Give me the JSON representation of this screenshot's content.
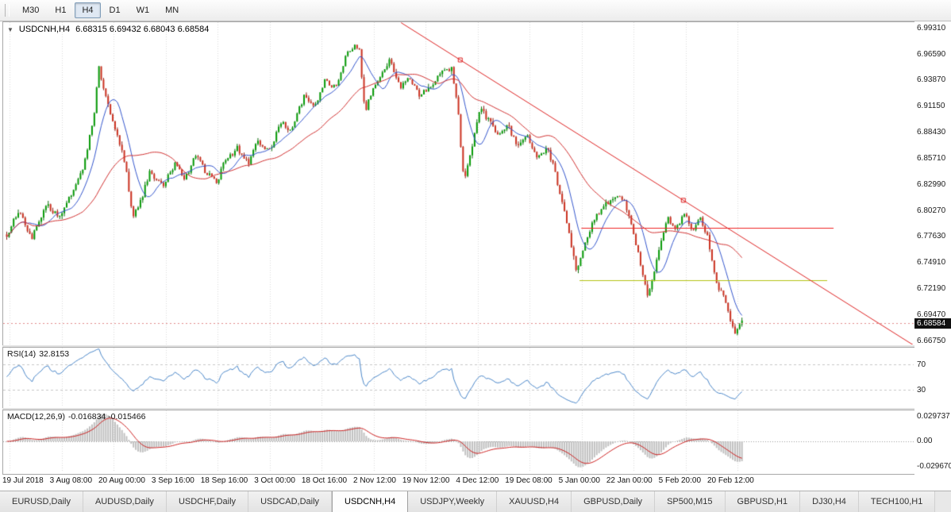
{
  "toolbar": {
    "timeframes": [
      {
        "label": "M30",
        "active": false
      },
      {
        "label": "H1",
        "active": false
      },
      {
        "label": "H4",
        "active": true
      },
      {
        "label": "D1",
        "active": false
      },
      {
        "label": "W1",
        "active": false
      },
      {
        "label": "MN",
        "active": false
      }
    ]
  },
  "chart": {
    "symbol_title": "USDCNH,H4",
    "ohlc": "6.68315 6.69432 6.68043 6.68584",
    "current_price": "6.68584",
    "dropdown_icon": "▼",
    "price_axis": [
      "6.99310",
      "6.96590",
      "6.93870",
      "6.91150",
      "6.88430",
      "6.85710",
      "6.82990",
      "6.80270",
      "6.77630",
      "6.74910",
      "6.72190",
      "6.69470",
      "6.66750"
    ],
    "time_axis": [
      "19 Jul 2018",
      "3 Aug 08:00",
      "20 Aug 00:00",
      "3 Sep 16:00",
      "18 Sep 16:00",
      "3 Oct 00:00",
      "18 Oct 16:00",
      "2 Nov 12:00",
      "19 Nov 12:00",
      "4 Dec 12:00",
      "19 Dec 08:00",
      "5 Jan 00:00",
      "22 Jan 00:00",
      "5 Feb 20:00",
      "20 Feb 12:00"
    ]
  },
  "rsi": {
    "name": "RSI(14)",
    "value": "32.8153",
    "levels": [
      "70",
      "30"
    ]
  },
  "macd": {
    "name": "MACD(12,26,9)",
    "values": "-0.016834 -0.015466",
    "axis": [
      "0.029737",
      "0.00",
      "-0.029670"
    ]
  },
  "tabs": [
    {
      "label": "EURUSD,Daily",
      "active": false
    },
    {
      "label": "AUDUSD,Daily",
      "active": false
    },
    {
      "label": "USDCHF,Daily",
      "active": false
    },
    {
      "label": "USDCAD,Daily",
      "active": false
    },
    {
      "label": "USDCNH,H4",
      "active": true
    },
    {
      "label": "USDJPY,Weekly",
      "active": false
    },
    {
      "label": "XAUUSD,H4",
      "active": false
    },
    {
      "label": "GBPUSD,Daily",
      "active": false
    },
    {
      "label": "SP500,M15",
      "active": false
    },
    {
      "label": "GBPUSD,H1",
      "active": false
    },
    {
      "label": "DJ30,H4",
      "active": false
    },
    {
      "label": "TECH100,H1",
      "active": false
    }
  ],
  "chart_data": {
    "type": "candlestick",
    "symbol": "USDCNH",
    "timeframe": "H4",
    "title": "USDCNH,H4",
    "price_min": 6.6635,
    "price_max": 6.9985,
    "data_width_frac": 0.81,
    "candles": 320,
    "seed": 1234,
    "grid_color": "#dadada",
    "candle_colors": {
      "up": "#089b08",
      "down": "#cc3322",
      "up_wick": "#0a6b0a",
      "down_wick": "#8b2016"
    },
    "ma_fast": {
      "period": 10,
      "color": "#3355cc"
    },
    "ma_slow": {
      "period": 34,
      "color": "#d03030"
    },
    "rsi_period": 14,
    "rsi_color": "#4a86c8",
    "rsi_range": [
      2,
      96
    ],
    "rsi_level_values": [
      70,
      30
    ],
    "macd_params": [
      12,
      26,
      9
    ],
    "macd_hist_color": "#c0c0c0",
    "macd_signal_color": "#cc2222",
    "hlines": [
      {
        "price": 6.785,
        "color": "#ee2222",
        "x1": 0.635,
        "x2": 0.912
      },
      {
        "price": 6.73,
        "color": "#b3c211",
        "x1": 0.633,
        "x2": 0.905
      }
    ],
    "trendline": {
      "color": "#dd2222",
      "p1": [
        0.437,
        6.998
      ],
      "p2": [
        1.002,
        6.6615
      ],
      "markers": [
        [
          0.502,
          6.9593
        ],
        [
          0.747,
          6.8134
        ]
      ]
    },
    "current_price_line": {
      "price": 6.68584,
      "color": "#e08a8a"
    },
    "price_path": [
      [
        0.0,
        6.778
      ],
      [
        0.017,
        6.802
      ],
      [
        0.033,
        6.773
      ],
      [
        0.055,
        6.81
      ],
      [
        0.071,
        6.794
      ],
      [
        0.087,
        6.818
      ],
      [
        0.104,
        6.847
      ],
      [
        0.118,
        6.897
      ],
      [
        0.125,
        6.951
      ],
      [
        0.134,
        6.922
      ],
      [
        0.147,
        6.889
      ],
      [
        0.16,
        6.856
      ],
      [
        0.172,
        6.796
      ],
      [
        0.181,
        6.81
      ],
      [
        0.195,
        6.843
      ],
      [
        0.212,
        6.827
      ],
      [
        0.228,
        6.851
      ],
      [
        0.242,
        6.835
      ],
      [
        0.257,
        6.86
      ],
      [
        0.271,
        6.843
      ],
      [
        0.285,
        6.831
      ],
      [
        0.298,
        6.856
      ],
      [
        0.314,
        6.868
      ],
      [
        0.328,
        6.851
      ],
      [
        0.341,
        6.876
      ],
      [
        0.357,
        6.864
      ],
      [
        0.374,
        6.897
      ],
      [
        0.387,
        6.884
      ],
      [
        0.404,
        6.922
      ],
      [
        0.419,
        6.909
      ],
      [
        0.433,
        6.938
      ],
      [
        0.449,
        6.93
      ],
      [
        0.462,
        6.967
      ],
      [
        0.479,
        6.975
      ],
      [
        0.487,
        6.905
      ],
      [
        0.494,
        6.922
      ],
      [
        0.509,
        6.946
      ],
      [
        0.522,
        6.959
      ],
      [
        0.535,
        6.93
      ],
      [
        0.548,
        6.942
      ],
      [
        0.562,
        6.922
      ],
      [
        0.578,
        6.934
      ],
      [
        0.591,
        6.947
      ],
      [
        0.605,
        6.951
      ],
      [
        0.613,
        6.913
      ],
      [
        0.622,
        6.831
      ],
      [
        0.63,
        6.86
      ],
      [
        0.643,
        6.909
      ],
      [
        0.656,
        6.897
      ],
      [
        0.667,
        6.88
      ],
      [
        0.681,
        6.893
      ],
      [
        0.695,
        6.868
      ],
      [
        0.708,
        6.88
      ],
      [
        0.721,
        6.856
      ],
      [
        0.735,
        6.868
      ],
      [
        0.746,
        6.843
      ],
      [
        0.757,
        6.806
      ],
      [
        0.768,
        6.765
      ],
      [
        0.775,
        6.74
      ],
      [
        0.782,
        6.757
      ],
      [
        0.792,
        6.781
      ],
      [
        0.803,
        6.798
      ],
      [
        0.814,
        6.81
      ],
      [
        0.825,
        6.814
      ],
      [
        0.836,
        6.818
      ],
      [
        0.847,
        6.798
      ],
      [
        0.857,
        6.765
      ],
      [
        0.866,
        6.736
      ],
      [
        0.872,
        6.715
      ],
      [
        0.879,
        6.732
      ],
      [
        0.89,
        6.773
      ],
      [
        0.9,
        6.794
      ],
      [
        0.911,
        6.785
      ],
      [
        0.922,
        6.798
      ],
      [
        0.933,
        6.781
      ],
      [
        0.943,
        6.794
      ],
      [
        0.954,
        6.773
      ],
      [
        0.965,
        6.727
      ],
      [
        0.976,
        6.711
      ],
      [
        0.983,
        6.69
      ],
      [
        0.991,
        6.673
      ],
      [
        1.0,
        6.686
      ]
    ]
  }
}
